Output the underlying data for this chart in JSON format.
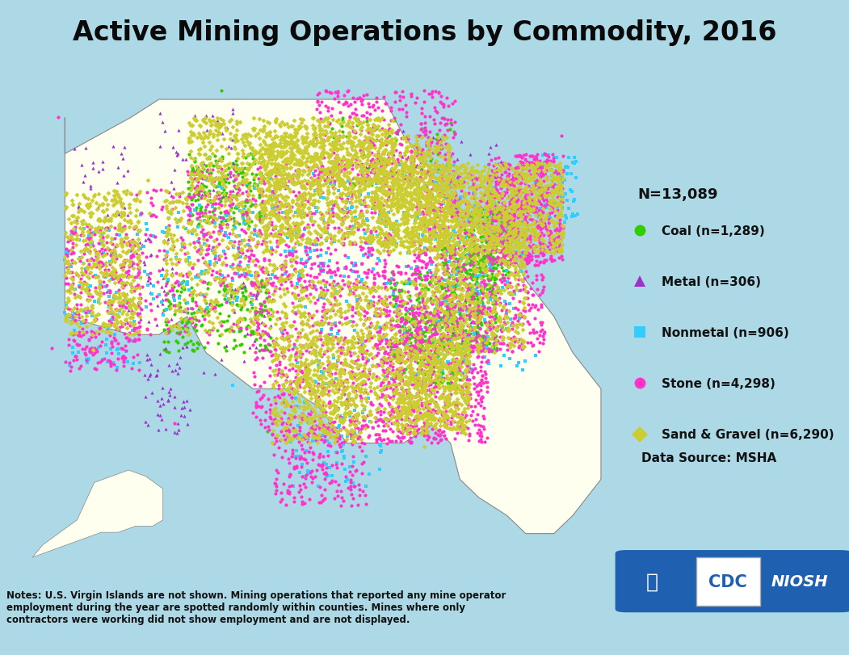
{
  "title": "Active Mining Operations by Commodity, 2016",
  "title_fontsize": 24,
  "title_fontweight": "bold",
  "background_color": "#ADD8E6",
  "map_fill": "#FFFFF0",
  "map_edge": "#999999",
  "map_edge_width": 0.4,
  "legend_n_total": "N=13,089",
  "legend_items": [
    {
      "label": "Coal (n=1,289)",
      "color": "#33CC00",
      "marker": "o",
      "n": 1289
    },
    {
      "label": "Metal (n=306)",
      "color": "#9933CC",
      "marker": "^",
      "n": 306
    },
    {
      "label": "Nonmetal (n=906)",
      "color": "#33CCFF",
      "marker": "s",
      "n": 906
    },
    {
      "label": "Stone (n=4,298)",
      "color": "#FF33CC",
      "marker": "o",
      "n": 4298
    },
    {
      "label": "Sand & Gravel (n=6,290)",
      "color": "#CCCC33",
      "marker": "D",
      "n": 6290
    }
  ],
  "notes_text": "Notes: U.S. Virgin Islands are not shown. Mining operations that reported any mine operator\nemployment during the year are spotted randomly within counties. Mines where only\ncontractors were working did not show employment and are not displayed.",
  "data_source": "Data Source: MSHA",
  "marker_size": 6,
  "seed": 42,
  "map_xlim": [
    -130,
    -65
  ],
  "map_ylim": [
    23,
    52
  ],
  "alaska_xlim": [
    -180,
    -130
  ],
  "alaska_ylim": [
    51,
    72
  ],
  "hawaii_xlim": [
    -162,
    -154
  ],
  "hawaii_ylim": [
    18,
    23
  ]
}
